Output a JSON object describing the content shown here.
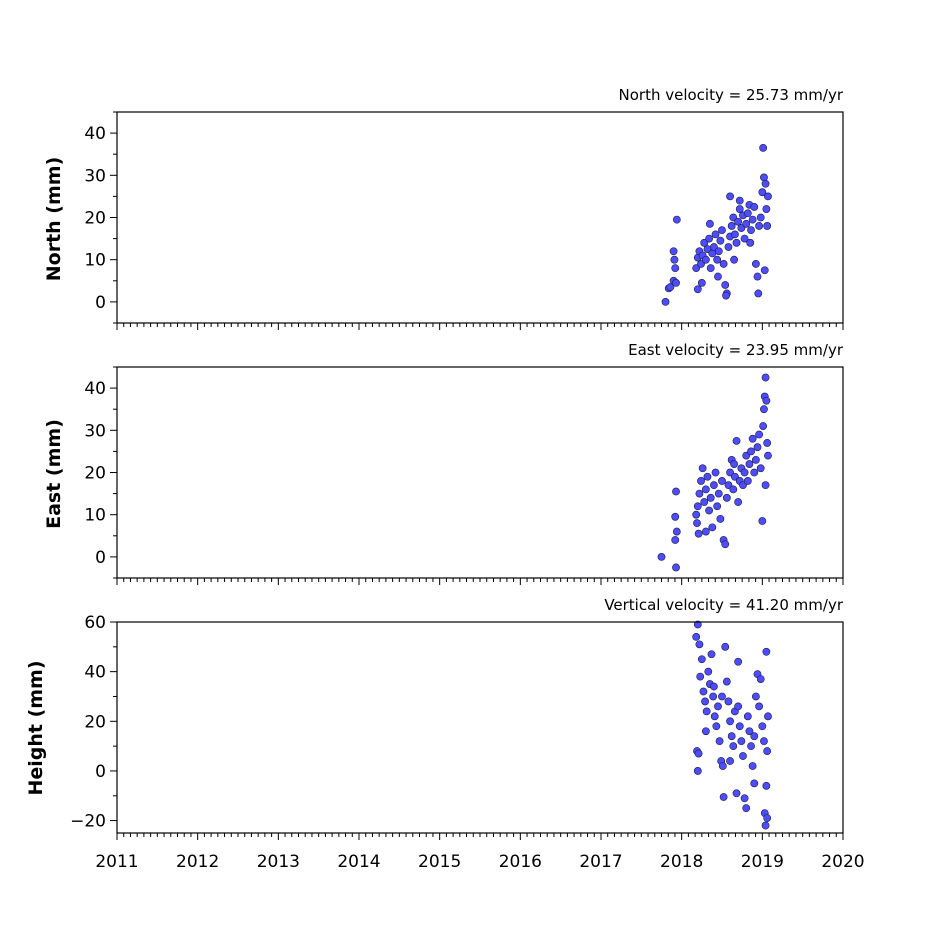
{
  "chart_data": [
    {
      "type": "scatter",
      "title": "North velocity = 25.73 mm/yr",
      "ylabel": "North (mm)",
      "xlim": [
        2011,
        2020
      ],
      "ylim": [
        -5,
        45
      ],
      "yticks": [
        0,
        10,
        20,
        30,
        40
      ],
      "yticklabels": [
        "0",
        "10",
        "20",
        "30",
        "40"
      ],
      "marker_color": "#4d4dff",
      "points": [
        [
          2017.8,
          0.0
        ],
        [
          2017.84,
          3.2
        ],
        [
          2017.86,
          3.5
        ],
        [
          2017.9,
          5.0
        ],
        [
          2017.92,
          8.0
        ],
        [
          2017.91,
          10.0
        ],
        [
          2017.9,
          12.0
        ],
        [
          2017.94,
          19.5
        ],
        [
          2017.93,
          4.5
        ],
        [
          2018.18,
          8.0
        ],
        [
          2018.2,
          10.5
        ],
        [
          2018.22,
          12.0
        ],
        [
          2018.24,
          9.0
        ],
        [
          2018.26,
          11.0
        ],
        [
          2018.28,
          14.0
        ],
        [
          2018.2,
          3.0
        ],
        [
          2018.25,
          4.5
        ],
        [
          2018.3,
          10.0
        ],
        [
          2018.32,
          12.5
        ],
        [
          2018.34,
          15.0
        ],
        [
          2018.36,
          8.0
        ],
        [
          2018.38,
          11.5
        ],
        [
          2018.4,
          13.0
        ],
        [
          2018.42,
          16.0
        ],
        [
          2018.44,
          10.0
        ],
        [
          2018.46,
          12.0
        ],
        [
          2018.48,
          14.5
        ],
        [
          2018.5,
          17.0
        ],
        [
          2018.52,
          9.0
        ],
        [
          2018.54,
          4.0
        ],
        [
          2018.56,
          2.0
        ],
        [
          2018.55,
          1.5
        ],
        [
          2018.58,
          13.0
        ],
        [
          2018.6,
          15.5
        ],
        [
          2018.62,
          18.0
        ],
        [
          2018.64,
          20.0
        ],
        [
          2018.66,
          16.0
        ],
        [
          2018.68,
          14.0
        ],
        [
          2018.7,
          19.0
        ],
        [
          2018.72,
          22.0
        ],
        [
          2018.74,
          17.5
        ],
        [
          2018.76,
          20.5
        ],
        [
          2018.78,
          15.0
        ],
        [
          2018.8,
          18.5
        ],
        [
          2018.82,
          21.0
        ],
        [
          2018.84,
          23.0
        ],
        [
          2018.86,
          17.0
        ],
        [
          2018.88,
          19.5
        ],
        [
          2018.9,
          22.5
        ],
        [
          2018.92,
          9.0
        ],
        [
          2018.94,
          6.0
        ],
        [
          2018.95,
          2.0
        ],
        [
          2018.96,
          18.0
        ],
        [
          2018.98,
          20.0
        ],
        [
          2019.0,
          26.0
        ],
        [
          2019.02,
          29.5
        ],
        [
          2019.04,
          28.0
        ],
        [
          2019.01,
          36.5
        ],
        [
          2019.05,
          22.0
        ],
        [
          2019.06,
          18.0
        ],
        [
          2019.03,
          7.5
        ],
        [
          2019.07,
          25.0
        ],
        [
          2018.6,
          25.0
        ],
        [
          2018.72,
          24.0
        ],
        [
          2018.35,
          18.5
        ],
        [
          2018.45,
          6.0
        ],
        [
          2018.65,
          10.0
        ],
        [
          2018.85,
          14.0
        ]
      ]
    },
    {
      "type": "scatter",
      "title": "East velocity = 23.95 mm/yr",
      "ylabel": "East (mm)",
      "xlim": [
        2011,
        2020
      ],
      "ylim": [
        -5,
        45
      ],
      "yticks": [
        0,
        10,
        20,
        30,
        40
      ],
      "yticklabels": [
        "0",
        "10",
        "20",
        "30",
        "40"
      ],
      "marker_color": "#4d4dff",
      "points": [
        [
          2017.75,
          0.0
        ],
        [
          2017.93,
          -2.5
        ],
        [
          2017.92,
          4.0
        ],
        [
          2017.94,
          6.0
        ],
        [
          2017.92,
          9.5
        ],
        [
          2017.93,
          15.5
        ],
        [
          2018.18,
          10.0
        ],
        [
          2018.2,
          12.0
        ],
        [
          2018.22,
          15.0
        ],
        [
          2018.24,
          18.0
        ],
        [
          2018.26,
          21.0
        ],
        [
          2018.19,
          8.0
        ],
        [
          2018.21,
          5.5
        ],
        [
          2018.28,
          13.0
        ],
        [
          2018.3,
          16.0
        ],
        [
          2018.32,
          19.0
        ],
        [
          2018.34,
          11.0
        ],
        [
          2018.36,
          14.0
        ],
        [
          2018.38,
          7.0
        ],
        [
          2018.4,
          17.0
        ],
        [
          2018.42,
          20.0
        ],
        [
          2018.44,
          12.0
        ],
        [
          2018.46,
          15.0
        ],
        [
          2018.48,
          9.0
        ],
        [
          2018.5,
          18.0
        ],
        [
          2018.52,
          4.0
        ],
        [
          2018.54,
          3.0
        ],
        [
          2018.56,
          14.0
        ],
        [
          2018.58,
          17.0
        ],
        [
          2018.6,
          20.0
        ],
        [
          2018.62,
          23.0
        ],
        [
          2018.64,
          16.0
        ],
        [
          2018.66,
          19.0
        ],
        [
          2018.68,
          27.5
        ],
        [
          2018.7,
          13.0
        ],
        [
          2018.72,
          18.0
        ],
        [
          2018.74,
          21.0
        ],
        [
          2018.76,
          17.0
        ],
        [
          2018.78,
          20.0
        ],
        [
          2018.8,
          24.0
        ],
        [
          2018.82,
          18.0
        ],
        [
          2018.84,
          22.0
        ],
        [
          2018.86,
          25.0
        ],
        [
          2018.88,
          28.0
        ],
        [
          2018.9,
          20.0
        ],
        [
          2018.92,
          23.0
        ],
        [
          2018.94,
          26.0
        ],
        [
          2018.96,
          29.0
        ],
        [
          2018.98,
          21.0
        ],
        [
          2019.0,
          8.5
        ],
        [
          2019.01,
          31.0
        ],
        [
          2019.02,
          35.0
        ],
        [
          2019.03,
          38.0
        ],
        [
          2019.04,
          42.5
        ],
        [
          2019.05,
          37.0
        ],
        [
          2019.06,
          27.0
        ],
        [
          2019.07,
          24.0
        ],
        [
          2019.04,
          17.0
        ],
        [
          2018.65,
          22.0
        ],
        [
          2018.3,
          6.0
        ]
      ]
    },
    {
      "type": "scatter",
      "title": "Vertical velocity = 41.20 mm/yr",
      "ylabel": "Height (mm)",
      "xlim": [
        2011,
        2020
      ],
      "ylim": [
        -25,
        60
      ],
      "yticks": [
        -20,
        0,
        20,
        40,
        60
      ],
      "yticklabels": [
        "−20",
        "0",
        "20",
        "40",
        "60"
      ],
      "xticks": [
        2011,
        2012,
        2013,
        2014,
        2015,
        2016,
        2017,
        2018,
        2019,
        2020
      ],
      "xticklabels": [
        "2011",
        "2012",
        "2013",
        "2014",
        "2015",
        "2016",
        "2017",
        "2018",
        "2019",
        "2020"
      ],
      "marker_color": "#4d4dff",
      "points": [
        [
          2018.2,
          59.0
        ],
        [
          2018.18,
          54.0
        ],
        [
          2018.22,
          51.0
        ],
        [
          2018.19,
          8.0
        ],
        [
          2018.2,
          0.0
        ],
        [
          2018.21,
          7.0
        ],
        [
          2018.23,
          38.0
        ],
        [
          2018.25,
          45.0
        ],
        [
          2018.27,
          32.0
        ],
        [
          2018.29,
          28.0
        ],
        [
          2018.31,
          24.0
        ],
        [
          2018.33,
          40.0
        ],
        [
          2018.35,
          35.0
        ],
        [
          2018.37,
          47.0
        ],
        [
          2018.39,
          30.0
        ],
        [
          2018.41,
          22.0
        ],
        [
          2018.43,
          18.0
        ],
        [
          2018.45,
          26.0
        ],
        [
          2018.47,
          12.0
        ],
        [
          2018.49,
          4.0
        ],
        [
          2018.51,
          2.0
        ],
        [
          2018.52,
          -10.5
        ],
        [
          2018.54,
          50.0
        ],
        [
          2018.56,
          36.0
        ],
        [
          2018.58,
          28.0
        ],
        [
          2018.6,
          20.0
        ],
        [
          2018.62,
          14.0
        ],
        [
          2018.64,
          10.0
        ],
        [
          2018.66,
          24.0
        ],
        [
          2018.68,
          -9.0
        ],
        [
          2018.7,
          44.0
        ],
        [
          2018.72,
          18.0
        ],
        [
          2018.74,
          12.0
        ],
        [
          2018.76,
          6.0
        ],
        [
          2018.78,
          -11.0
        ],
        [
          2018.8,
          -15.0
        ],
        [
          2018.82,
          22.0
        ],
        [
          2018.84,
          16.0
        ],
        [
          2018.86,
          10.0
        ],
        [
          2018.88,
          2.0
        ],
        [
          2018.9,
          -5.0
        ],
        [
          2018.92,
          30.0
        ],
        [
          2018.94,
          39.0
        ],
        [
          2018.96,
          26.0
        ],
        [
          2018.98,
          37.0
        ],
        [
          2019.0,
          18.0
        ],
        [
          2019.02,
          12.0
        ],
        [
          2019.03,
          -17.0
        ],
        [
          2019.04,
          -22.0
        ],
        [
          2019.05,
          48.0
        ],
        [
          2019.06,
          -19.0
        ],
        [
          2019.07,
          22.0
        ],
        [
          2019.06,
          8.0
        ],
        [
          2019.05,
          -6.0
        ],
        [
          2018.3,
          16.0
        ],
        [
          2018.5,
          30.0
        ],
        [
          2018.7,
          26.0
        ],
        [
          2018.9,
          14.0
        ],
        [
          2018.4,
          34.0
        ],
        [
          2018.6,
          4.0
        ]
      ]
    }
  ]
}
